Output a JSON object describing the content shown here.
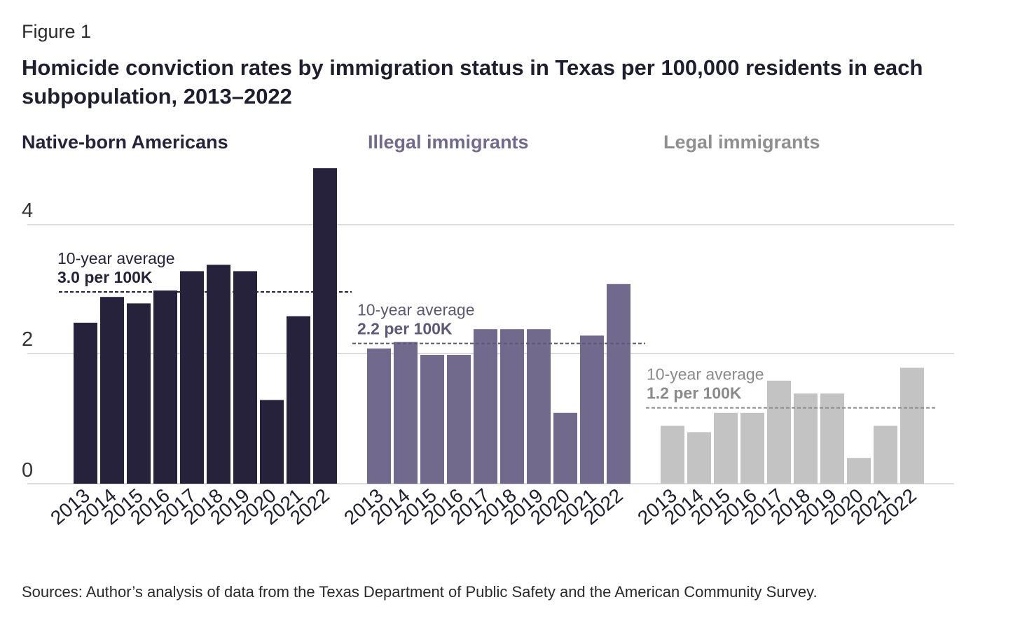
{
  "figure_label": "Figure 1",
  "source_note": "Sources: Author’s analysis of data from the Texas Department of Public Safety and the American Community Survey.",
  "chart_data": {
    "type": "bar",
    "title": "Homicide conviction rates by immigration status in Texas per 100,000 residents in each subpopulation, 2013–2022",
    "xlabel": "",
    "ylabel": "",
    "ylim": [
      0,
      5
    ],
    "yticks": [
      "0",
      "2",
      "4"
    ],
    "grid": true,
    "categories": [
      "2013",
      "2014",
      "2015",
      "2016",
      "2017",
      "2018",
      "2019",
      "2020",
      "2021",
      "2022"
    ],
    "series": [
      {
        "name": "Native-born Americans",
        "color": "#27223b",
        "values": [
          2.5,
          2.9,
          2.8,
          3.0,
          3.3,
          3.4,
          3.3,
          1.3,
          2.6,
          4.9
        ],
        "average": 3.0,
        "average_title": "10-year average",
        "average_label": "3.0 per 100K"
      },
      {
        "name": "Illegal immigrants",
        "color": "#726a8c",
        "values": [
          2.1,
          2.2,
          2.0,
          2.0,
          2.4,
          2.4,
          2.4,
          1.1,
          2.3,
          3.1
        ],
        "average": 2.2,
        "average_title": "10-year average",
        "average_label": "2.2 per 100K"
      },
      {
        "name": "Legal immigrants",
        "color": "#c3c3c3",
        "values": [
          0.9,
          0.8,
          1.1,
          1.1,
          1.6,
          1.4,
          1.4,
          0.4,
          0.9,
          1.8
        ],
        "average": 1.2,
        "average_title": "10-year average",
        "average_label": "1.2 per 100K"
      }
    ]
  }
}
